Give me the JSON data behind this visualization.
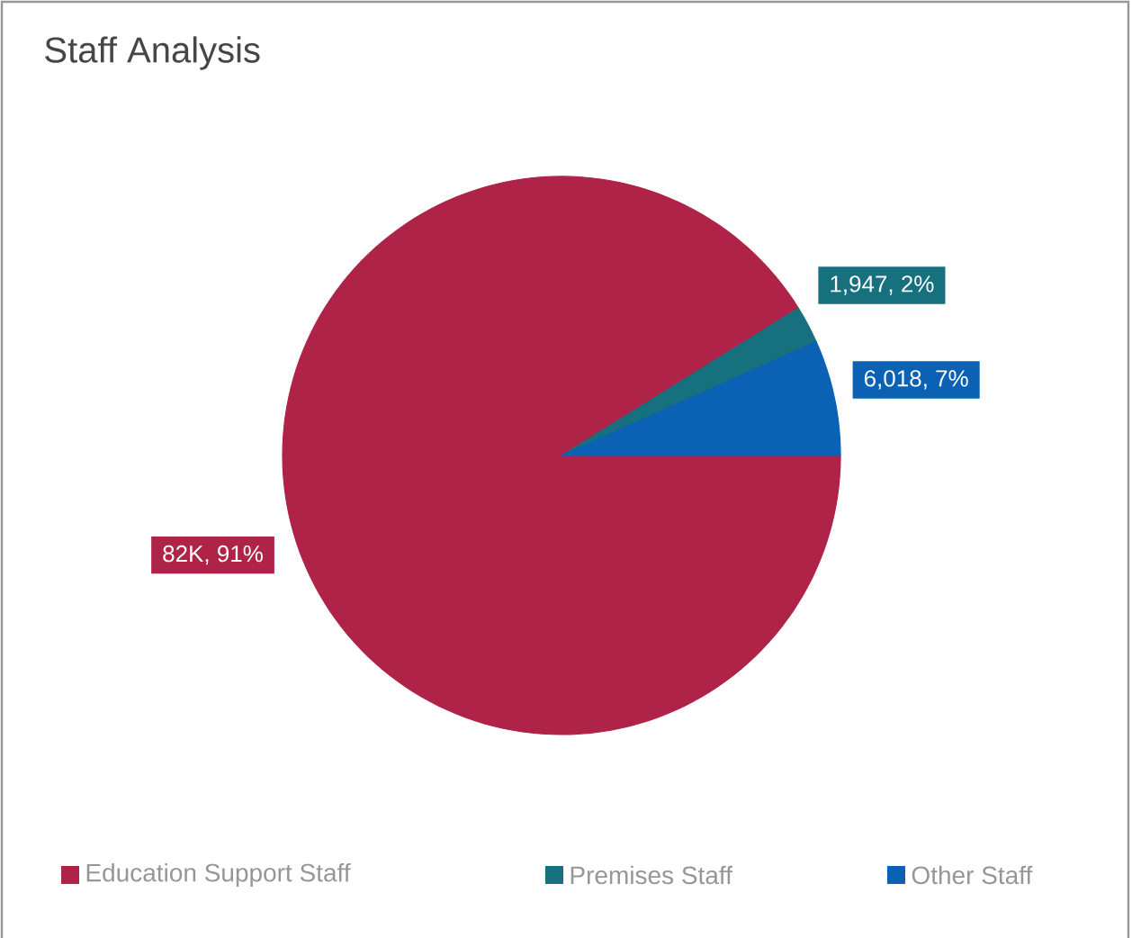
{
  "chart_data": {
    "type": "pie",
    "title": "Staff Analysis",
    "categories": [
      "Education Support Staff",
      "Premises Staff",
      "Other Staff"
    ],
    "values": [
      82000,
      1947,
      6018
    ],
    "colors": [
      "#af2348",
      "#17707e",
      "#0b61b3"
    ],
    "value_labels": [
      "82K, 91%",
      "1,947, 2%",
      "6,018, 7%"
    ],
    "legend": "bottom"
  }
}
